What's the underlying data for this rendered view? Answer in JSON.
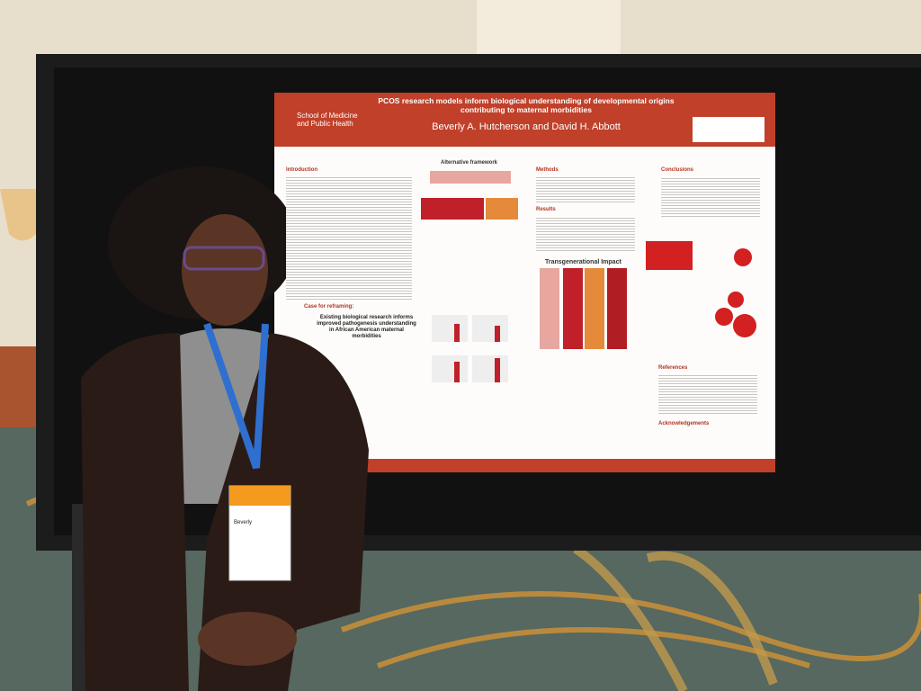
{
  "poster": {
    "institution": "School of Medicine and Public Health",
    "title": "PCOS research models inform biological understanding of developmental origins contributing to maternal morbidities",
    "authors": "Beverly A. Hutcherson and David H. Abbott",
    "sections": {
      "introduction": "Introduction",
      "framework": "Alternative framework",
      "methods": "Methods",
      "results": "Results",
      "conclusions": "Conclusions",
      "transgenerational": "Transgenerational Impact",
      "references": "References",
      "acknowledgements": "Acknowledgements",
      "reframing": "Case for reframing:",
      "existing": "Existing biological research informs improved pathogenesis understanding in African American maternal morbidities"
    }
  },
  "badge": {
    "name": "Beverly"
  }
}
